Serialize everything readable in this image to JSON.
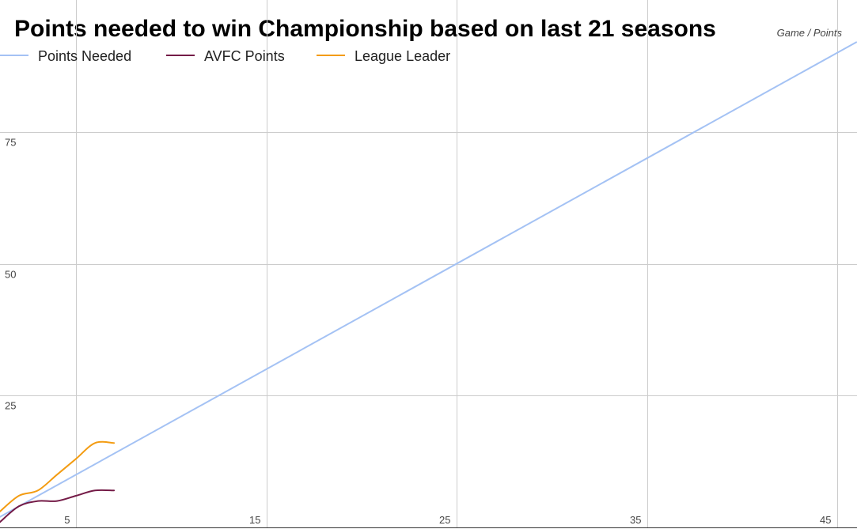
{
  "chart_data": {
    "type": "line",
    "title": "Points needed to win Championship based on last 21 seasons",
    "subtitle": "Game / Points",
    "xlabel": "",
    "ylabel": "",
    "xlim": [
      1,
      46
    ],
    "ylim": [
      0,
      100
    ],
    "x_ticks": [
      5,
      15,
      25,
      35,
      45
    ],
    "y_ticks": [
      25,
      50,
      75
    ],
    "grid": true,
    "legend_position": "top-left",
    "series": [
      {
        "name": "Points Needed",
        "color": "#a4c2f4",
        "x": [
          1,
          46
        ],
        "y": [
          2,
          92
        ]
      },
      {
        "name": "AVFC Points",
        "color": "#741b47",
        "x": [
          1,
          2,
          3,
          4,
          5,
          6,
          7
        ],
        "y": [
          1,
          4,
          5,
          5,
          6,
          7,
          7
        ]
      },
      {
        "name": "League Leader",
        "color": "#f39c12",
        "x": [
          1,
          2,
          3,
          4,
          5,
          6,
          7
        ],
        "y": [
          3,
          6,
          7,
          10,
          13,
          16,
          16
        ]
      }
    ]
  }
}
